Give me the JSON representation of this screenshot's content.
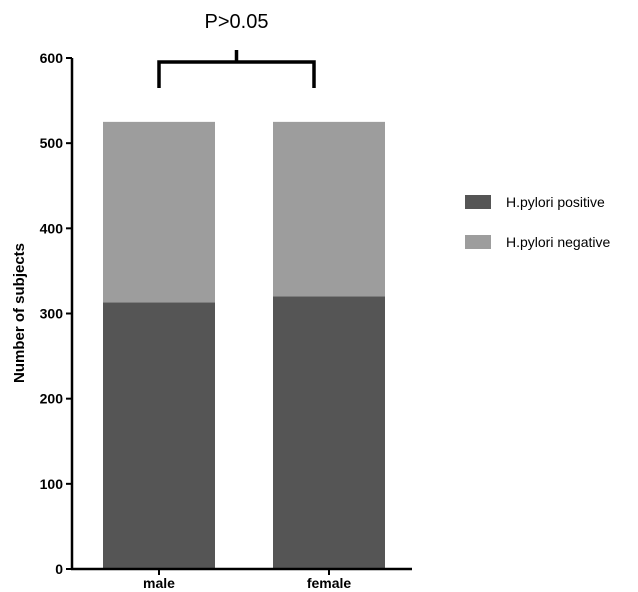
{
  "chart_data": {
    "type": "bar",
    "stacked": true,
    "categories": [
      "male",
      "female"
    ],
    "series": [
      {
        "name": "H.pylori positive",
        "values": [
          313,
          320
        ],
        "color": "#555555"
      },
      {
        "name": "H.pylori negative",
        "values": [
          212,
          205
        ],
        "color": "#9d9d9d"
      }
    ],
    "ylabel": "Number of subjects",
    "xlabel": "",
    "ylim": [
      0,
      600
    ],
    "yticks": [
      0,
      100,
      200,
      300,
      400,
      500,
      600
    ],
    "grid": false,
    "legend_position": "right",
    "annotation": {
      "text": "P>0.05",
      "type": "bracket",
      "between": [
        "male",
        "female"
      ]
    }
  }
}
